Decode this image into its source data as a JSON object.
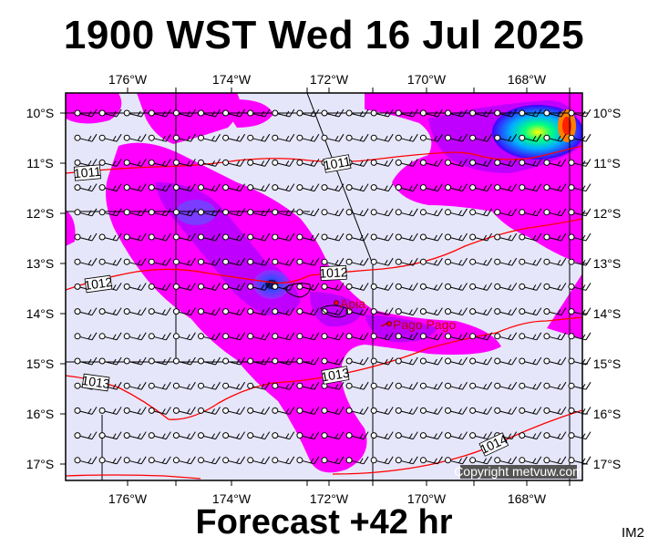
{
  "header": {
    "title": "1900 WST Wed 16 Jul 2025"
  },
  "footer": {
    "forecast": "Forecast +42 hr",
    "code": "IM2"
  },
  "map": {
    "lon_labels": [
      "176°W",
      "174°W",
      "172°W",
      "170°W",
      "168°W"
    ],
    "lat_labels": [
      "10°S",
      "11°S",
      "12°S",
      "13°S",
      "14°S",
      "15°S",
      "16°S",
      "17°S"
    ],
    "isobar_labels": [
      "1011",
      "1011",
      "1012",
      "1012",
      "1013",
      "1013",
      "1014"
    ],
    "places": [
      {
        "name": "Apia"
      },
      {
        "name": "Pago Pago"
      }
    ],
    "copyright": "Copyright metvuw.com",
    "colors": {
      "background": "#e6e6fa",
      "rain_light": "#ff00ff",
      "rain_mid": "#cc00ff",
      "rain_heavy": "#8a2be2",
      "rain_core": "#3f28ff",
      "isobar": "#ff0000"
    }
  }
}
